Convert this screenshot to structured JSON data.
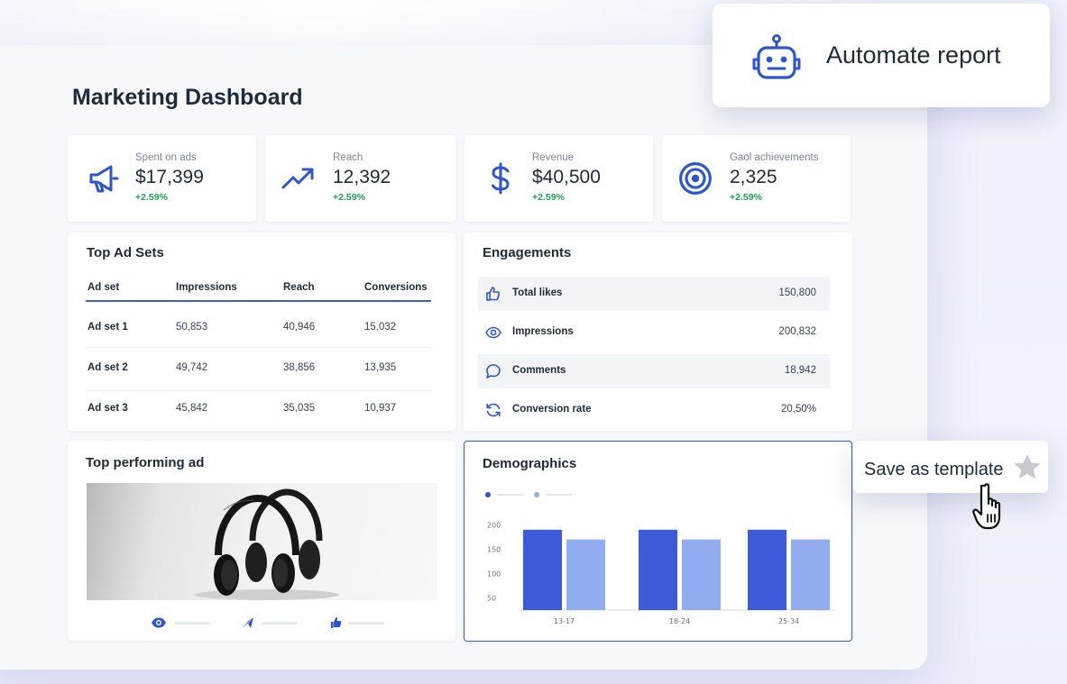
{
  "page_title": "Marketing Dashboard",
  "kpis": [
    {
      "label": "Spent on ads",
      "value": "$17,399",
      "change": "+2.59%",
      "icon": "megaphone-icon"
    },
    {
      "label": "Reach",
      "value": "12,392",
      "change": "+2.59%",
      "icon": "trend-up-icon"
    },
    {
      "label": "Revenue",
      "value": "$40,500",
      "change": "+2.59%",
      "icon": "dollar-icon"
    },
    {
      "label": "Gaol achievements",
      "value": "2,325",
      "change": "+2.59%",
      "icon": "target-icon"
    }
  ],
  "top_ad_sets": {
    "title": "Top Ad Sets",
    "columns": [
      "Ad set",
      "Impressions",
      "Reach",
      "Conversions"
    ],
    "rows": [
      [
        "Ad set 1",
        "50,853",
        "40,946",
        "15,032"
      ],
      [
        "Ad set 2",
        "49,742",
        "38,856",
        "13,935"
      ],
      [
        "Ad set 3",
        "45,842",
        "35,035",
        "10,937"
      ]
    ]
  },
  "engagements": {
    "title": "Engagements",
    "rows": [
      {
        "label": "Total likes",
        "value": "150,800",
        "icon": "thumbs-up-icon"
      },
      {
        "label": "Impressions",
        "value": "200,832",
        "icon": "eye-icon"
      },
      {
        "label": "Comments",
        "value": "18,942",
        "icon": "comment-icon"
      },
      {
        "label": "Conversion rate",
        "value": "20,50%",
        "icon": "refresh-icon"
      }
    ]
  },
  "top_ad": {
    "title": "Top performing ad",
    "stats_icons": [
      "eye-icon",
      "send-icon",
      "thumbs-up-icon"
    ]
  },
  "demographics": {
    "title": "Demographics"
  },
  "chart_data": {
    "type": "bar",
    "title": "Demographics",
    "categories": [
      "13-17",
      "18-24",
      "25-34"
    ],
    "series": [
      {
        "values": [
          190,
          190,
          190
        ],
        "color": "#3b5bdb"
      },
      {
        "values": [
          170,
          170,
          170
        ],
        "color": "#91adf0"
      }
    ],
    "yticks": [
      "200",
      "150",
      "100",
      "50"
    ],
    "ylim": [
      25,
      210
    ],
    "legend": "top-left",
    "grid": false
  },
  "automate_report": {
    "label": "Automate report",
    "icon": "robot-icon"
  },
  "save_template": {
    "label": "Save as template",
    "icon": "star-icon",
    "cursor_icon": "hand-pointer-icon"
  },
  "colors": {
    "accent": "#2f56c8",
    "positive": "#1f9d55",
    "bar_dark": "#3b5bdb",
    "bar_light": "#91adf0"
  }
}
